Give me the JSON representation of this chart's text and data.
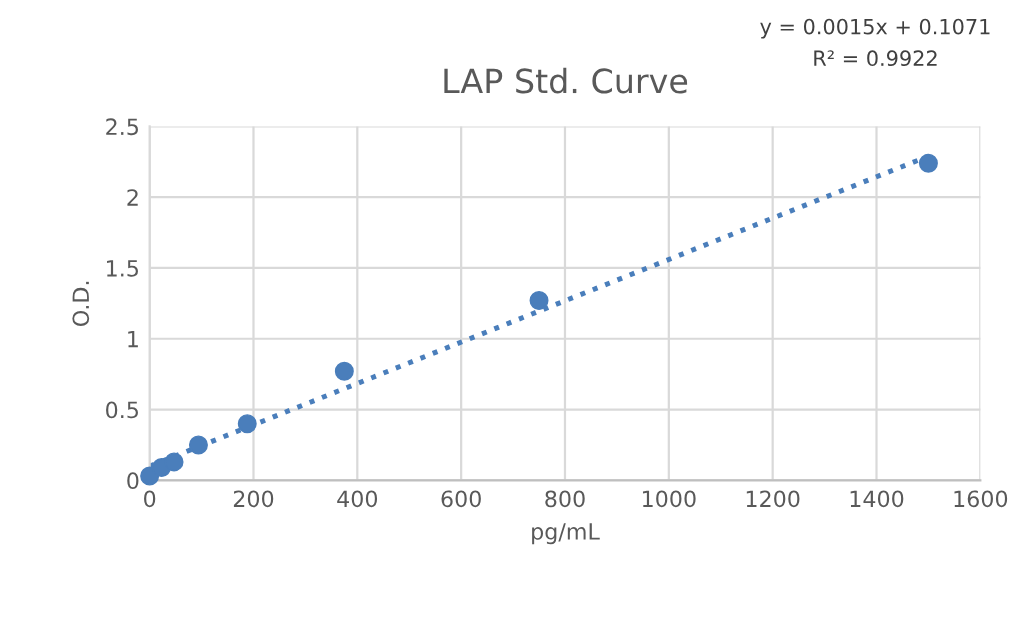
{
  "chart_data": {
    "type": "scatter",
    "title": "LAP Std. Curve",
    "xlabel": "pg/mL",
    "ylabel": "O.D.",
    "series": [
      {
        "color": "#4a7ebb",
        "x": [
          0,
          23,
          47,
          94,
          188,
          375,
          750,
          1500
        ],
        "values": [
          0.03,
          0.09,
          0.13,
          0.25,
          0.4,
          0.77,
          1.27,
          2.24
        ],
        "marker": "circle"
      },
      {
        "type": "line",
        "color": "#4a7ebb",
        "x": [
          0,
          1500
        ],
        "values": [
          0.1,
          2.29
        ],
        "line_style": "dotted",
        "marker": "none"
      }
    ],
    "annotations": [
      "y = 0.0015x + 0.1071",
      "R² = 0.9922"
    ],
    "xlim": [
      0,
      1600
    ],
    "xticks": [
      0,
      200,
      400,
      600,
      800,
      1000,
      1200,
      1400,
      1600
    ],
    "ylim": [
      0,
      2.5
    ],
    "yticks": [
      0,
      0.5,
      1,
      1.5,
      2,
      2.5
    ],
    "grid": true
  }
}
